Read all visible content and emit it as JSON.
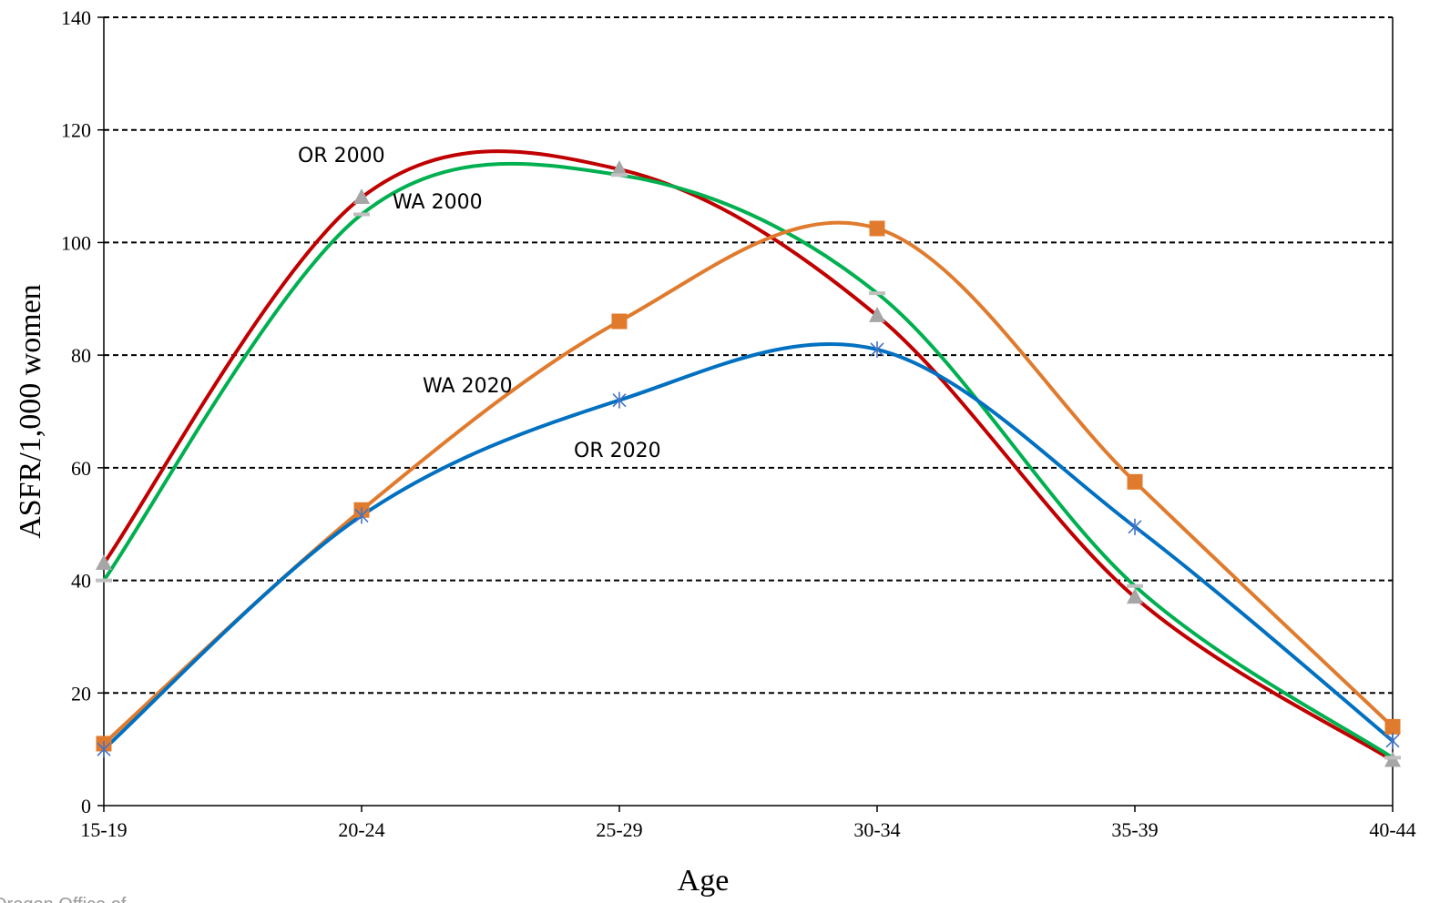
{
  "chart_data": {
    "type": "line",
    "title": "",
    "xlabel": "Age",
    "ylabel": "ASFR/1,000 women",
    "categories": [
      "15-19",
      "20-24",
      "25-29",
      "30-34",
      "35-39",
      "40-44"
    ],
    "ylim": [
      0,
      140
    ],
    "yticks": [
      0,
      20,
      40,
      60,
      80,
      100,
      120,
      140
    ],
    "grid": true,
    "legend": "none",
    "series": [
      {
        "name": "OR 2000",
        "values": [
          43,
          108,
          113,
          87,
          37,
          8
        ],
        "color": "#C00000",
        "marker": "triangle",
        "marker_color": "#A6A6A6"
      },
      {
        "name": "WA 2000",
        "values": [
          40,
          105,
          112,
          91,
          39,
          8.5
        ],
        "color": "#00B050",
        "marker": "dash",
        "marker_color": "#BFBFBF"
      },
      {
        "name": "WA 2020",
        "values": [
          11,
          52.5,
          86,
          102.5,
          57.5,
          14
        ],
        "color": "#E07B2E",
        "marker": "square",
        "marker_color": "#E07B2E"
      },
      {
        "name": "OR 2020",
        "values": [
          10,
          51.5,
          72,
          81,
          49.5,
          11.5
        ],
        "color": "#0070C0",
        "marker": "star",
        "marker_color": "#4472C4"
      }
    ],
    "annotations": [
      {
        "text": "OR 2000",
        "series": "OR 2000"
      },
      {
        "text": "WA 2000",
        "series": "WA 2000"
      },
      {
        "text": "WA 2020",
        "series": "WA 2020"
      },
      {
        "text": "OR 2020",
        "series": "OR 2020"
      }
    ]
  },
  "footer_text": "Oregon Office of"
}
